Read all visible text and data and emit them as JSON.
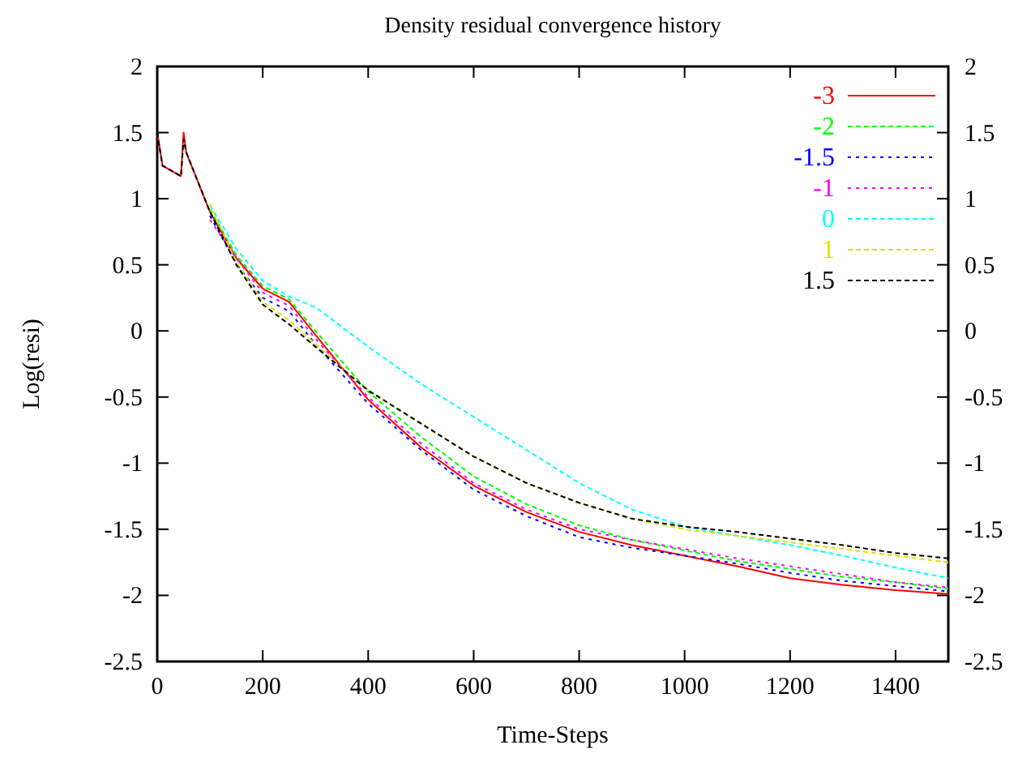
{
  "chart_data": {
    "type": "line",
    "title": "Density residual convergence history",
    "xlabel": "Time-Steps",
    "ylabel": "Log(resi)",
    "x": [
      0,
      10,
      45,
      50,
      55,
      80,
      100,
      150,
      200,
      250,
      300,
      400,
      500,
      600,
      700,
      800,
      900,
      1000,
      1100,
      1200,
      1300,
      1400,
      1500
    ],
    "series": [
      {
        "name": "-3",
        "color": "#ff0000",
        "line_style": "solid",
        "values": [
          1.5,
          1.25,
          1.17,
          1.5,
          1.35,
          1.1,
          0.9,
          0.55,
          0.32,
          0.22,
          -0.03,
          -0.52,
          -0.88,
          -1.17,
          -1.37,
          -1.52,
          -1.62,
          -1.7,
          -1.78,
          -1.87,
          -1.92,
          -1.96,
          -1.99
        ]
      },
      {
        "name": "-2",
        "color": "#00ff00",
        "line_style": "dashed",
        "values": [
          null,
          null,
          null,
          null,
          null,
          null,
          0.92,
          0.57,
          0.34,
          0.24,
          0.0,
          -0.46,
          -0.8,
          -1.1,
          -1.31,
          -1.47,
          -1.58,
          -1.66,
          -1.74,
          -1.8,
          -1.86,
          -1.9,
          -1.95
        ]
      },
      {
        "name": "-1.5",
        "color": "#0000ff",
        "line_style": "dotted",
        "values": [
          null,
          null,
          null,
          null,
          null,
          null,
          0.87,
          0.51,
          0.25,
          0.15,
          -0.1,
          -0.55,
          -0.9,
          -1.2,
          -1.4,
          -1.56,
          -1.64,
          -1.7,
          -1.76,
          -1.83,
          -1.89,
          -1.93,
          -1.97
        ]
      },
      {
        "name": "-1",
        "color": "#ff00ff",
        "line_style": "dotted",
        "values": [
          null,
          null,
          null,
          null,
          null,
          null,
          0.84,
          0.55,
          0.29,
          0.19,
          -0.06,
          -0.5,
          -0.85,
          -1.15,
          -1.35,
          -1.5,
          -1.58,
          -1.65,
          -1.72,
          -1.78,
          -1.84,
          -1.9,
          -1.94
        ]
      },
      {
        "name": "0",
        "color": "#00ffff",
        "line_style": "dashed",
        "values": [
          null,
          null,
          null,
          null,
          null,
          null,
          0.95,
          0.62,
          0.38,
          0.26,
          0.18,
          -0.12,
          -0.4,
          -0.65,
          -0.9,
          -1.15,
          -1.35,
          -1.48,
          -1.55,
          -1.62,
          -1.7,
          -1.79,
          -1.87
        ]
      },
      {
        "name": "1",
        "color": "#e0e000",
        "line_style": "dashed",
        "values": [
          null,
          null,
          null,
          null,
          null,
          null,
          0.96,
          0.52,
          0.22,
          0.08,
          -0.1,
          -0.45,
          -0.7,
          -0.95,
          -1.15,
          -1.3,
          -1.42,
          -1.5,
          -1.55,
          -1.6,
          -1.65,
          -1.7,
          -1.75
        ]
      },
      {
        "name": "1.5",
        "color": "#000000",
        "line_style": "dashed",
        "values": [
          1.5,
          1.25,
          1.17,
          1.45,
          1.35,
          1.1,
          0.9,
          0.5,
          0.2,
          0.05,
          -0.12,
          -0.45,
          -0.7,
          -0.95,
          -1.15,
          -1.3,
          -1.42,
          -1.48,
          -1.52,
          -1.57,
          -1.62,
          -1.68,
          -1.72
        ]
      }
    ],
    "xlim": [
      0,
      1500
    ],
    "xticks": [
      0,
      200,
      400,
      600,
      800,
      1000,
      1200,
      1400
    ],
    "ylim": [
      -2.5,
      2
    ],
    "yticks": [
      -2.5,
      -2,
      -1.5,
      -1,
      -0.5,
      0,
      0.5,
      1,
      1.5,
      2
    ],
    "y2lim": [
      -2.5,
      2
    ],
    "y2ticks": [
      -2.5,
      -2,
      -1.5,
      -1,
      -0.5,
      0,
      0.5,
      1,
      1.5,
      2
    ],
    "legend": "top right",
    "grid": false,
    "marker": "none"
  }
}
